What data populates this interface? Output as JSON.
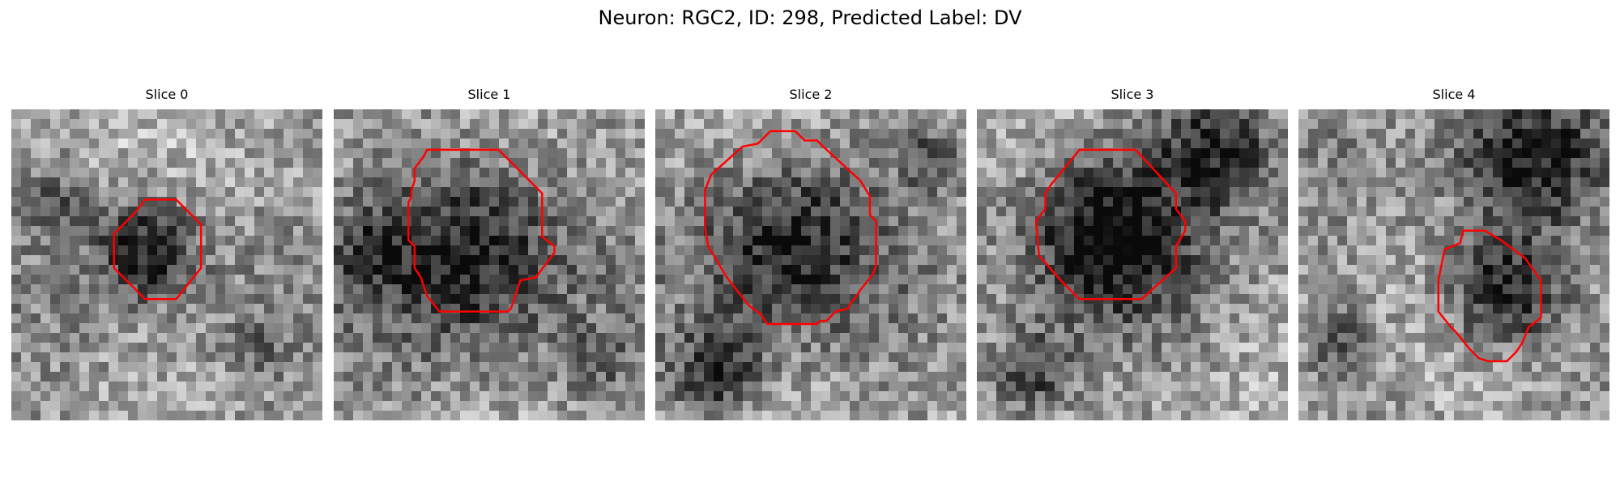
{
  "figure": {
    "title": "Neuron: RGC2, ID: 298, Predicted Label: DV"
  },
  "panels": [
    {
      "title": "Slice 0",
      "grid_size": 32,
      "seed": 11,
      "blobs": [
        [
          0.43,
          0.45,
          0.16,
          0.55
        ],
        [
          0.15,
          0.3,
          0.12,
          0.25
        ],
        [
          0.8,
          0.75,
          0.1,
          0.15
        ]
      ],
      "contour_color": "#ff0000",
      "contour": [
        [
          0.43,
          0.29
        ],
        [
          0.53,
          0.29
        ],
        [
          0.61,
          0.37
        ],
        [
          0.61,
          0.51
        ],
        [
          0.53,
          0.61
        ],
        [
          0.43,
          0.61
        ],
        [
          0.33,
          0.51
        ],
        [
          0.33,
          0.4
        ],
        [
          0.4,
          0.33
        ]
      ]
    },
    {
      "title": "Slice 1",
      "grid_size": 32,
      "seed": 23,
      "blobs": [
        [
          0.45,
          0.45,
          0.3,
          0.55
        ],
        [
          0.1,
          0.45,
          0.15,
          0.25
        ],
        [
          0.85,
          0.8,
          0.1,
          0.2
        ]
      ],
      "contour_color": "#ff0000",
      "contour": [
        [
          0.3,
          0.13
        ],
        [
          0.53,
          0.13
        ],
        [
          0.67,
          0.27
        ],
        [
          0.67,
          0.41
        ],
        [
          0.71,
          0.44
        ],
        [
          0.71,
          0.46
        ],
        [
          0.65,
          0.54
        ],
        [
          0.6,
          0.55
        ],
        [
          0.59,
          0.58
        ],
        [
          0.57,
          0.64
        ],
        [
          0.56,
          0.65
        ],
        [
          0.34,
          0.65
        ],
        [
          0.3,
          0.6
        ],
        [
          0.28,
          0.54
        ],
        [
          0.26,
          0.51
        ],
        [
          0.26,
          0.44
        ],
        [
          0.24,
          0.42
        ],
        [
          0.24,
          0.37
        ],
        [
          0.24,
          0.34
        ],
        [
          0.24,
          0.3
        ],
        [
          0.25,
          0.28
        ],
        [
          0.25,
          0.26
        ],
        [
          0.26,
          0.23
        ],
        [
          0.26,
          0.19
        ],
        [
          0.29,
          0.15
        ],
        [
          0.3,
          0.13
        ]
      ]
    },
    {
      "title": "Slice 2",
      "grid_size": 32,
      "seed": 37,
      "blobs": [
        [
          0.42,
          0.42,
          0.28,
          0.5
        ],
        [
          0.2,
          0.85,
          0.15,
          0.45
        ],
        [
          0.9,
          0.15,
          0.12,
          0.3
        ]
      ],
      "contour_color": "#ff0000",
      "contour": [
        [
          0.35,
          0.09
        ],
        [
          0.37,
          0.07
        ],
        [
          0.45,
          0.07
        ],
        [
          0.48,
          0.1
        ],
        [
          0.52,
          0.1
        ],
        [
          0.54,
          0.12
        ],
        [
          0.66,
          0.23
        ],
        [
          0.69,
          0.28
        ],
        [
          0.69,
          0.34
        ],
        [
          0.71,
          0.36
        ],
        [
          0.71,
          0.5
        ],
        [
          0.7,
          0.53
        ],
        [
          0.66,
          0.58
        ],
        [
          0.64,
          0.61
        ],
        [
          0.63,
          0.62
        ],
        [
          0.62,
          0.64
        ],
        [
          0.58,
          0.65
        ],
        [
          0.55,
          0.68
        ],
        [
          0.53,
          0.68
        ],
        [
          0.52,
          0.69
        ],
        [
          0.36,
          0.69
        ],
        [
          0.34,
          0.66
        ],
        [
          0.3,
          0.63
        ],
        [
          0.23,
          0.54
        ],
        [
          0.17,
          0.44
        ],
        [
          0.16,
          0.38
        ],
        [
          0.16,
          0.26
        ],
        [
          0.18,
          0.21
        ],
        [
          0.28,
          0.12
        ],
        [
          0.33,
          0.11
        ],
        [
          0.35,
          0.09
        ]
      ]
    },
    {
      "title": "Slice 3",
      "grid_size": 32,
      "seed": 51,
      "blobs": [
        [
          0.42,
          0.42,
          0.25,
          0.6
        ],
        [
          0.78,
          0.12,
          0.2,
          0.5
        ],
        [
          0.18,
          0.85,
          0.14,
          0.45
        ]
      ],
      "contour_color": "#ff0000",
      "contour": [
        [
          0.33,
          0.13
        ],
        [
          0.51,
          0.13
        ],
        [
          0.64,
          0.27
        ],
        [
          0.64,
          0.32
        ],
        [
          0.67,
          0.36
        ],
        [
          0.67,
          0.39
        ],
        [
          0.64,
          0.44
        ],
        [
          0.64,
          0.51
        ],
        [
          0.53,
          0.61
        ],
        [
          0.33,
          0.61
        ],
        [
          0.27,
          0.55
        ],
        [
          0.2,
          0.47
        ],
        [
          0.19,
          0.36
        ],
        [
          0.22,
          0.32
        ],
        [
          0.22,
          0.27
        ],
        [
          0.24,
          0.24
        ],
        [
          0.33,
          0.13
        ]
      ]
    },
    {
      "title": "Slice 4",
      "grid_size": 32,
      "seed": 67,
      "blobs": [
        [
          0.66,
          0.59,
          0.18,
          0.55
        ],
        [
          0.73,
          0.15,
          0.22,
          0.5
        ],
        [
          0.15,
          0.75,
          0.1,
          0.3
        ]
      ],
      "contour_color": "#ff0000",
      "contour": [
        [
          0.53,
          0.39
        ],
        [
          0.6,
          0.39
        ],
        [
          0.65,
          0.42
        ],
        [
          0.69,
          0.45
        ],
        [
          0.73,
          0.48
        ],
        [
          0.78,
          0.55
        ],
        [
          0.78,
          0.67
        ],
        [
          0.74,
          0.7
        ],
        [
          0.72,
          0.75
        ],
        [
          0.7,
          0.78
        ],
        [
          0.67,
          0.81
        ],
        [
          0.61,
          0.81
        ],
        [
          0.58,
          0.8
        ],
        [
          0.55,
          0.77
        ],
        [
          0.51,
          0.72
        ],
        [
          0.49,
          0.7
        ],
        [
          0.45,
          0.65
        ],
        [
          0.45,
          0.55
        ],
        [
          0.47,
          0.45
        ],
        [
          0.52,
          0.43
        ],
        [
          0.53,
          0.39
        ]
      ]
    }
  ]
}
